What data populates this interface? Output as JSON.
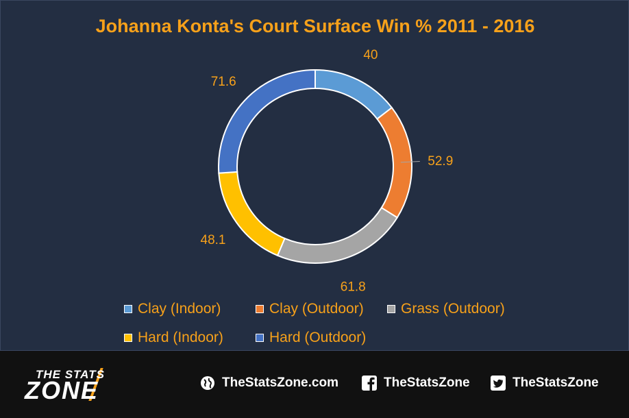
{
  "chart_data": {
    "type": "pie",
    "title": "Johanna Konta's Court Surface Win % 2011 - 2016",
    "categories": [
      "Clay (Indoor)",
      "Clay (Outdoor)",
      "Grass (Outdoor)",
      "Hard (Indoor)",
      "Hard (Outdoor)"
    ],
    "values": [
      40,
      52.9,
      61.8,
      48.1,
      71.6
    ],
    "labels": [
      "40",
      "52.9",
      "61.8",
      "48.1",
      "71.6"
    ],
    "colors": [
      "#5b9bd5",
      "#ed7d31",
      "#a5a5a5",
      "#ffc000",
      "#4472c4"
    ],
    "legend_position": "bottom",
    "style": "doughnut"
  },
  "footer": {
    "logo_line1": "THE STATS",
    "logo_line2": "ZONE",
    "website": "TheStatsZone.com",
    "facebook": "TheStatsZone",
    "twitter": "TheStatsZone",
    "icons": [
      "globe-icon",
      "facebook-icon",
      "twitter-icon"
    ]
  }
}
